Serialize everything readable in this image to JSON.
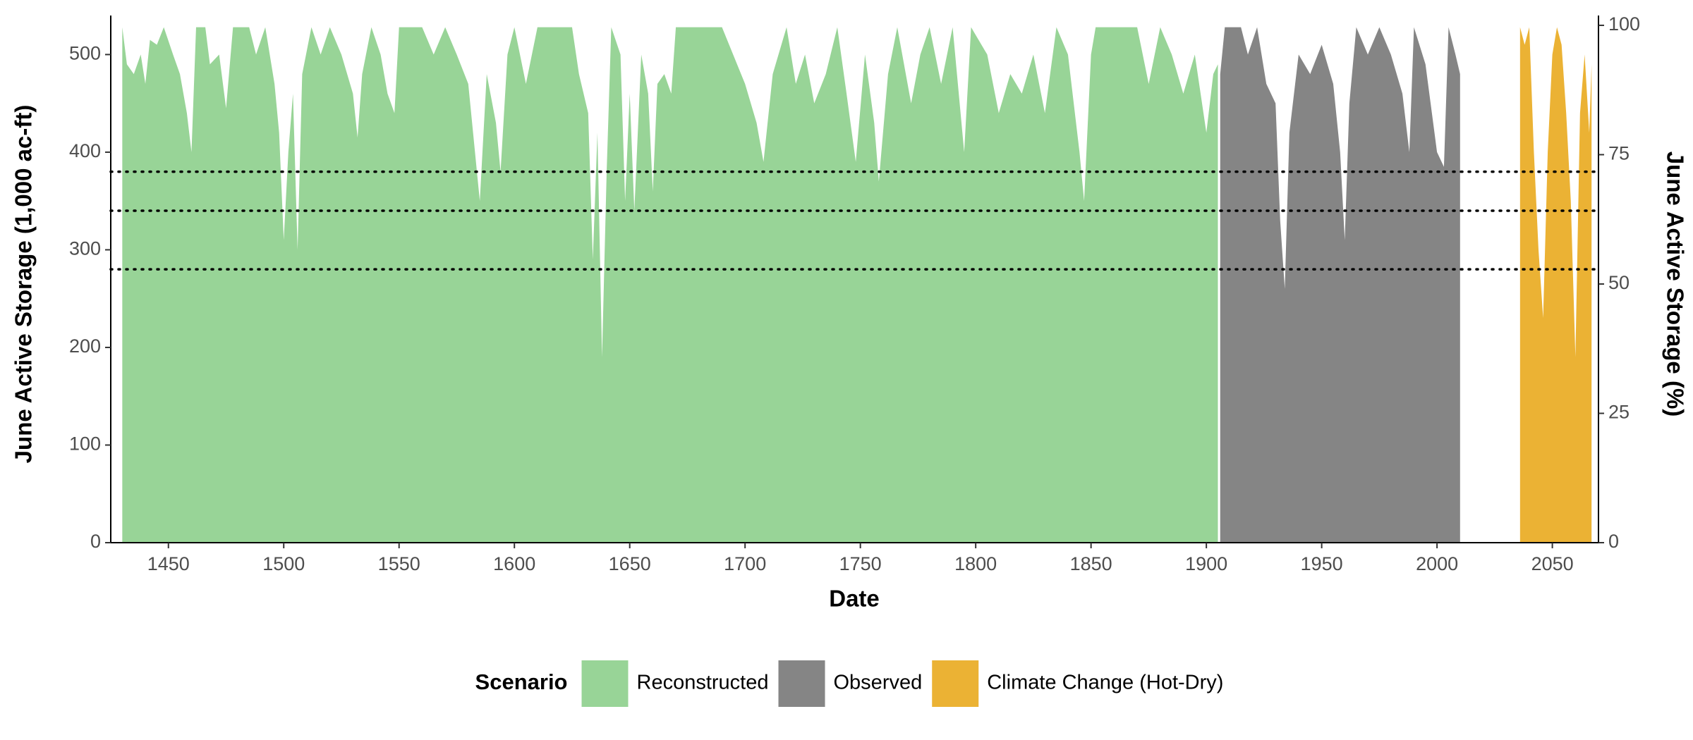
{
  "chart_data": {
    "type": "area",
    "x_label": "Date",
    "y_label": "June Active Storage (1,000 ac-ft)",
    "y2_label": "June Active Storage (%)",
    "legend_title": "Scenario",
    "legend_position": "bottom",
    "xlim": [
      1425,
      2070
    ],
    "xticks": [
      1450,
      1500,
      1550,
      1600,
      1650,
      1700,
      1750,
      1800,
      1850,
      1900,
      1950,
      2000,
      2050
    ],
    "ylim": [
      0,
      540
    ],
    "yticks": [
      0,
      100,
      200,
      300,
      400,
      500
    ],
    "y2lim": [
      0,
      101.9
    ],
    "y2ticks": [
      0,
      25,
      50,
      75,
      100
    ],
    "hlines": [
      380,
      340,
      280
    ],
    "series": [
      {
        "name": "Reconstructed",
        "color": "#98d497",
        "x": [
          1430,
          1432,
          1435,
          1438,
          1440,
          1442,
          1445,
          1448,
          1452,
          1455,
          1458,
          1460,
          1462,
          1466,
          1468,
          1472,
          1475,
          1478,
          1485,
          1488,
          1492,
          1496,
          1498,
          1500,
          1502,
          1504,
          1506,
          1508,
          1512,
          1516,
          1520,
          1525,
          1530,
          1532,
          1534,
          1538,
          1542,
          1545,
          1548,
          1550,
          1560,
          1565,
          1570,
          1575,
          1580,
          1585,
          1588,
          1592,
          1594,
          1597,
          1600,
          1605,
          1610,
          1625,
          1628,
          1632,
          1634,
          1636,
          1638,
          1640,
          1642,
          1646,
          1648,
          1650,
          1652,
          1655,
          1658,
          1660,
          1662,
          1665,
          1668,
          1670,
          1680,
          1690,
          1700,
          1705,
          1708,
          1712,
          1718,
          1722,
          1726,
          1730,
          1735,
          1740,
          1744,
          1748,
          1752,
          1756,
          1758,
          1762,
          1766,
          1772,
          1776,
          1780,
          1785,
          1790,
          1795,
          1798,
          1805,
          1810,
          1815,
          1820,
          1825,
          1830,
          1835,
          1840,
          1845,
          1847,
          1850,
          1852,
          1870,
          1875,
          1880,
          1885,
          1890,
          1895,
          1900,
          1903,
          1905
        ],
        "values": [
          528,
          490,
          480,
          500,
          470,
          515,
          510,
          528,
          500,
          480,
          440,
          400,
          528,
          528,
          490,
          500,
          445,
          528,
          528,
          500,
          528,
          470,
          420,
          310,
          400,
          460,
          300,
          480,
          528,
          500,
          528,
          500,
          460,
          415,
          480,
          528,
          500,
          460,
          440,
          528,
          528,
          500,
          528,
          500,
          470,
          350,
          480,
          430,
          380,
          500,
          528,
          470,
          528,
          528,
          480,
          440,
          290,
          420,
          190,
          380,
          528,
          500,
          350,
          460,
          340,
          500,
          460,
          360,
          470,
          480,
          460,
          528,
          528,
          528,
          470,
          430,
          390,
          480,
          528,
          470,
          500,
          450,
          480,
          528,
          460,
          390,
          500,
          430,
          370,
          480,
          528,
          450,
          500,
          528,
          470,
          528,
          400,
          528,
          500,
          440,
          480,
          460,
          500,
          440,
          528,
          500,
          400,
          350,
          500,
          528,
          528,
          470,
          528,
          500,
          460,
          500,
          420,
          480,
          490
        ]
      },
      {
        "name": "Observed",
        "color": "#858585",
        "x": [
          1906,
          1908,
          1915,
          1918,
          1922,
          1926,
          1930,
          1932,
          1934,
          1936,
          1940,
          1945,
          1950,
          1955,
          1958,
          1960,
          1962,
          1965,
          1970,
          1975,
          1980,
          1985,
          1988,
          1990,
          1995,
          2000,
          2003,
          2005,
          2008,
          2010
        ],
        "values": [
          480,
          528,
          528,
          500,
          528,
          470,
          450,
          330,
          260,
          420,
          500,
          480,
          510,
          470,
          400,
          310,
          450,
          528,
          500,
          528,
          500,
          460,
          400,
          528,
          490,
          400,
          385,
          528,
          500,
          480
        ]
      },
      {
        "name": "Climate Change (Hot-Dry)",
        "color": "#ebb234",
        "x": [
          2036,
          2038,
          2040,
          2042,
          2044,
          2046,
          2048,
          2050,
          2052,
          2054,
          2056,
          2058,
          2060,
          2062,
          2064,
          2066,
          2067
        ],
        "values": [
          528,
          510,
          528,
          400,
          300,
          230,
          400,
          500,
          528,
          510,
          440,
          350,
          190,
          440,
          500,
          420,
          490
        ]
      }
    ]
  }
}
